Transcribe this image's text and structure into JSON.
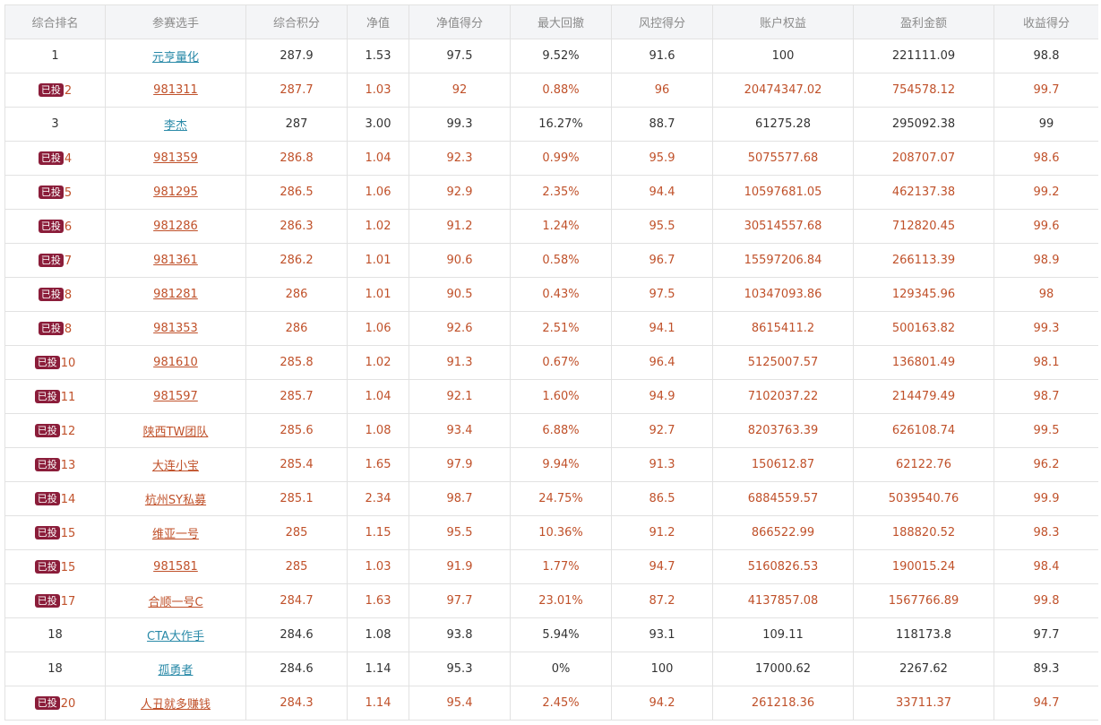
{
  "table": {
    "headers": [
      "综合排名",
      "参赛选手",
      "综合积分",
      "净值",
      "净值得分",
      "最大回撤",
      "风控得分",
      "账户权益",
      "盈利金额",
      "收益得分"
    ],
    "badge_label": "已投",
    "rows": [
      {
        "rank": "1",
        "invested": false,
        "name": "元亨量化",
        "score": "287.9",
        "nav": "1.53",
        "nav_score": "97.5",
        "max_drawdown": "9.52%",
        "risk_score": "91.6",
        "equity": "100",
        "profit": "221111.09",
        "return_score": "98.8"
      },
      {
        "rank": "2",
        "invested": true,
        "name": "981311",
        "score": "287.7",
        "nav": "1.03",
        "nav_score": "92",
        "max_drawdown": "0.88%",
        "risk_score": "96",
        "equity": "20474347.02",
        "profit": "754578.12",
        "return_score": "99.7"
      },
      {
        "rank": "3",
        "invested": false,
        "name": "李杰",
        "score": "287",
        "nav": "3.00",
        "nav_score": "99.3",
        "max_drawdown": "16.27%",
        "risk_score": "88.7",
        "equity": "61275.28",
        "profit": "295092.38",
        "return_score": "99"
      },
      {
        "rank": "4",
        "invested": true,
        "name": "981359",
        "score": "286.8",
        "nav": "1.04",
        "nav_score": "92.3",
        "max_drawdown": "0.99%",
        "risk_score": "95.9",
        "equity": "5075577.68",
        "profit": "208707.07",
        "return_score": "98.6"
      },
      {
        "rank": "5",
        "invested": true,
        "name": "981295",
        "score": "286.5",
        "nav": "1.06",
        "nav_score": "92.9",
        "max_drawdown": "2.35%",
        "risk_score": "94.4",
        "equity": "10597681.05",
        "profit": "462137.38",
        "return_score": "99.2"
      },
      {
        "rank": "6",
        "invested": true,
        "name": "981286",
        "score": "286.3",
        "nav": "1.02",
        "nav_score": "91.2",
        "max_drawdown": "1.24%",
        "risk_score": "95.5",
        "equity": "30514557.68",
        "profit": "712820.45",
        "return_score": "99.6"
      },
      {
        "rank": "7",
        "invested": true,
        "name": "981361",
        "score": "286.2",
        "nav": "1.01",
        "nav_score": "90.6",
        "max_drawdown": "0.58%",
        "risk_score": "96.7",
        "equity": "15597206.84",
        "profit": "266113.39",
        "return_score": "98.9"
      },
      {
        "rank": "8",
        "invested": true,
        "name": "981281",
        "score": "286",
        "nav": "1.01",
        "nav_score": "90.5",
        "max_drawdown": "0.43%",
        "risk_score": "97.5",
        "equity": "10347093.86",
        "profit": "129345.96",
        "return_score": "98"
      },
      {
        "rank": "8",
        "invested": true,
        "name": "981353",
        "score": "286",
        "nav": "1.06",
        "nav_score": "92.6",
        "max_drawdown": "2.51%",
        "risk_score": "94.1",
        "equity": "8615411.2",
        "profit": "500163.82",
        "return_score": "99.3"
      },
      {
        "rank": "10",
        "invested": true,
        "name": "981610",
        "score": "285.8",
        "nav": "1.02",
        "nav_score": "91.3",
        "max_drawdown": "0.67%",
        "risk_score": "96.4",
        "equity": "5125007.57",
        "profit": "136801.49",
        "return_score": "98.1"
      },
      {
        "rank": "11",
        "invested": true,
        "name": "981597",
        "score": "285.7",
        "nav": "1.04",
        "nav_score": "92.1",
        "max_drawdown": "1.60%",
        "risk_score": "94.9",
        "equity": "7102037.22",
        "profit": "214479.49",
        "return_score": "98.7"
      },
      {
        "rank": "12",
        "invested": true,
        "name": "陕西TW团队",
        "score": "285.6",
        "nav": "1.08",
        "nav_score": "93.4",
        "max_drawdown": "6.88%",
        "risk_score": "92.7",
        "equity": "8203763.39",
        "profit": "626108.74",
        "return_score": "99.5"
      },
      {
        "rank": "13",
        "invested": true,
        "name": "大连小宝",
        "score": "285.4",
        "nav": "1.65",
        "nav_score": "97.9",
        "max_drawdown": "9.94%",
        "risk_score": "91.3",
        "equity": "150612.87",
        "profit": "62122.76",
        "return_score": "96.2"
      },
      {
        "rank": "14",
        "invested": true,
        "name": "杭州SY私募",
        "score": "285.1",
        "nav": "2.34",
        "nav_score": "98.7",
        "max_drawdown": "24.75%",
        "risk_score": "86.5",
        "equity": "6884559.57",
        "profit": "5039540.76",
        "return_score": "99.9"
      },
      {
        "rank": "15",
        "invested": true,
        "name": "维亚一号",
        "score": "285",
        "nav": "1.15",
        "nav_score": "95.5",
        "max_drawdown": "10.36%",
        "risk_score": "91.2",
        "equity": "866522.99",
        "profit": "188820.52",
        "return_score": "98.3"
      },
      {
        "rank": "15",
        "invested": true,
        "name": "981581",
        "score": "285",
        "nav": "1.03",
        "nav_score": "91.9",
        "max_drawdown": "1.77%",
        "risk_score": "94.7",
        "equity": "5160826.53",
        "profit": "190015.24",
        "return_score": "98.4"
      },
      {
        "rank": "17",
        "invested": true,
        "name": "合顺一号C",
        "score": "284.7",
        "nav": "1.63",
        "nav_score": "97.7",
        "max_drawdown": "23.01%",
        "risk_score": "87.2",
        "equity": "4137857.08",
        "profit": "1567766.89",
        "return_score": "99.8"
      },
      {
        "rank": "18",
        "invested": false,
        "name": "CTA大作手",
        "score": "284.6",
        "nav": "1.08",
        "nav_score": "93.8",
        "max_drawdown": "5.94%",
        "risk_score": "93.1",
        "equity": "109.11",
        "profit": "118173.8",
        "return_score": "97.7"
      },
      {
        "rank": "18",
        "invested": false,
        "name": "孤勇者",
        "score": "284.6",
        "nav": "1.14",
        "nav_score": "95.3",
        "max_drawdown": "0%",
        "risk_score": "100",
        "equity": "17000.62",
        "profit": "2267.62",
        "return_score": "89.3"
      },
      {
        "rank": "20",
        "invested": true,
        "name": "人丑就多赚钱",
        "score": "284.3",
        "nav": "1.14",
        "nav_score": "95.4",
        "max_drawdown": "2.45%",
        "risk_score": "94.2",
        "equity": "261218.36",
        "profit": "33711.37",
        "return_score": "94.7"
      }
    ]
  },
  "colors": {
    "header_bg": "#f4f5f7",
    "header_text": "#8b8b8b",
    "plain_text": "#333333",
    "invested_text": "#c0512a",
    "plain_link": "#2a8aa8",
    "badge_bg": "#8b1d3a"
  }
}
